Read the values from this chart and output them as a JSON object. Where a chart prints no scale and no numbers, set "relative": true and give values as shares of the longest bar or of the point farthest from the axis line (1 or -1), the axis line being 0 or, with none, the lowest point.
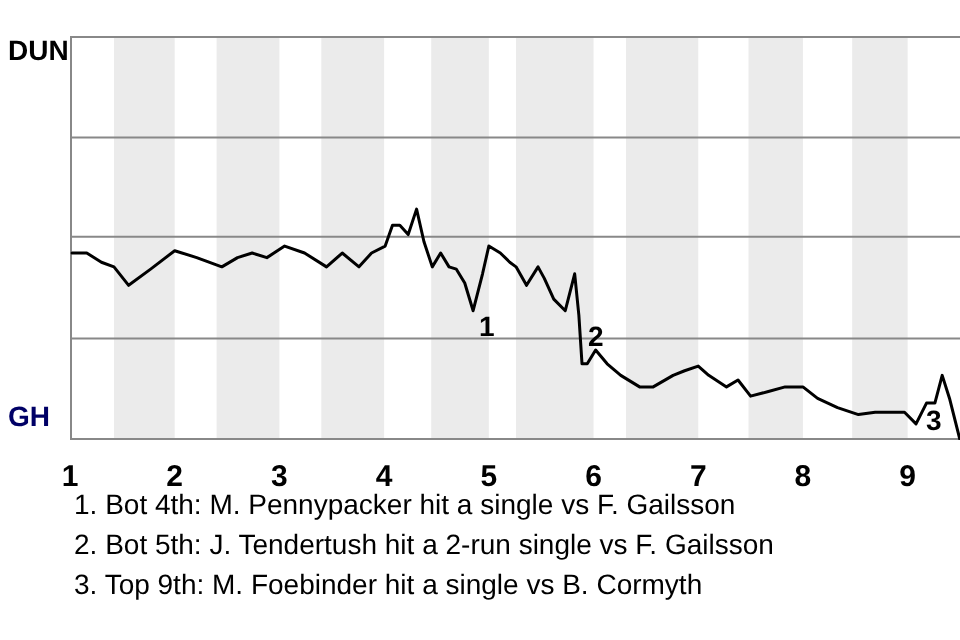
{
  "chart_data": {
    "type": "line",
    "relative": true,
    "x": [
      1.02,
      1.16,
      1.3,
      1.42,
      1.56,
      1.77,
      2.0,
      2.21,
      2.45,
      2.6,
      2.74,
      2.88,
      3.05,
      3.24,
      3.45,
      3.6,
      3.76,
      3.88,
      4.01,
      4.08,
      4.15,
      4.23,
      4.31,
      4.38,
      4.46,
      4.54,
      4.62,
      4.69,
      4.77,
      4.85,
      4.94,
      5.0,
      5.11,
      5.2,
      5.26,
      5.36,
      5.47,
      5.53,
      5.62,
      5.73,
      5.82,
      5.86,
      5.89,
      5.94,
      6.02,
      6.13,
      6.26,
      6.44,
      6.57,
      6.76,
      6.87,
      7.0,
      7.1,
      7.27,
      7.38,
      7.5,
      7.67,
      7.83,
      8.0,
      8.14,
      8.33,
      8.53,
      8.69,
      8.97,
      9.08,
      9.18,
      9.26,
      9.33,
      9.4,
      9.5
    ],
    "series": [
      {
        "color": "#000000",
        "values": [
          0.81,
          0.81,
          0.77,
          0.75,
          0.67,
          0.74,
          0.82,
          0.79,
          0.75,
          0.79,
          0.81,
          0.79,
          0.84,
          0.81,
          0.75,
          0.81,
          0.75,
          0.81,
          0.84,
          0.93,
          0.93,
          0.89,
          1,
          0.86,
          0.75,
          0.81,
          0.75,
          0.74,
          0.68,
          0.56,
          0.72,
          0.84,
          0.81,
          0.77,
          0.75,
          0.67,
          0.75,
          0.7,
          0.61,
          0.56,
          0.72,
          0.54,
          0.33,
          0.33,
          0.39,
          0.33,
          0.28,
          0.23,
          0.23,
          0.28,
          0.3,
          0.32,
          0.28,
          0.23,
          0.26,
          0.19,
          0.21,
          0.23,
          0.23,
          0.18,
          0.14,
          0.11,
          0.12,
          0.12,
          0.07,
          0.16,
          0.16,
          0.28,
          0.18,
          0
        ]
      }
    ],
    "xlim": [
      1,
      9.5
    ],
    "xticks": [
      1,
      2,
      3,
      4,
      5,
      6,
      7,
      8,
      9
    ],
    "marker": "none",
    "line_style": "solid",
    "ref_lines": [
      {
        "axis": "y",
        "value": 0.44,
        "color": "#888888"
      },
      {
        "axis": "y",
        "value": 0.88,
        "color": "#888888"
      },
      {
        "axis": "y",
        "value": 1.31,
        "color": "#888888"
      },
      {
        "axis": "y",
        "value": 1.75,
        "color": "#888888"
      }
    ],
    "bands": [
      {
        "axis": "x",
        "from": 1.42,
        "to": 2,
        "color": "#ebebeb"
      },
      {
        "axis": "x",
        "from": 2.4,
        "to": 3,
        "color": "#ebebeb"
      },
      {
        "axis": "x",
        "from": 3.4,
        "to": 4,
        "color": "#ebebeb"
      },
      {
        "axis": "x",
        "from": 4.45,
        "to": 5,
        "color": "#ebebeb"
      },
      {
        "axis": "x",
        "from": 5.26,
        "to": 6,
        "color": "#ebebeb"
      },
      {
        "axis": "x",
        "from": 6.31,
        "to": 7,
        "color": "#ebebeb"
      },
      {
        "axis": "x",
        "from": 7.48,
        "to": 8,
        "color": "#ebebeb"
      },
      {
        "axis": "x",
        "from": 8.47,
        "to": 9,
        "color": "#ebebeb"
      }
    ],
    "annotations": [
      "DUN",
      "GH",
      {
        "text": "1",
        "x": 4.85,
        "y": 0.56
      },
      {
        "text": "2",
        "x": 5.89,
        "y": 0.33
      },
      {
        "text": "3",
        "x": 9.4,
        "y": 0.18
      },
      "1. Bot 4th: M. Pennypacker hit a single vs F. Gailsson",
      "2. Bot 5th: J. Tendertush hit a 2-run single vs F. Gailsson",
      "3. Top 9th: M. Foebinder hit a single vs B. Cormyth"
    ]
  }
}
